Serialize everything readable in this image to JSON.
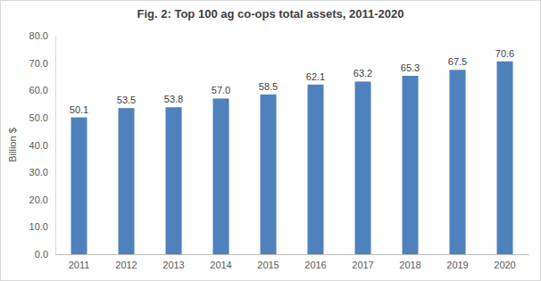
{
  "chart_data": {
    "type": "bar",
    "title": "Fig. 2: Top 100 ag co-ops total assets, 2011-2020",
    "ylabel": "Billion $",
    "categories": [
      "2011",
      "2012",
      "2013",
      "2014",
      "2015",
      "2016",
      "2017",
      "2018",
      "2019",
      "2020"
    ],
    "values": [
      50.1,
      53.5,
      53.8,
      57.0,
      58.5,
      62.1,
      63.2,
      65.3,
      67.5,
      70.6
    ],
    "value_labels": [
      "50.1",
      "53.5",
      "53.8",
      "57.0",
      "58.5",
      "62.1",
      "63.2",
      "65.3",
      "67.5",
      "70.6"
    ],
    "color": "#4f81bd",
    "ylim": [
      0,
      80
    ],
    "yticks": [
      {
        "value": 0,
        "label": "0.0"
      },
      {
        "value": 10,
        "label": "10.0"
      },
      {
        "value": 20,
        "label": "20.0"
      },
      {
        "value": 30,
        "label": "30.0"
      },
      {
        "value": 40,
        "label": "40.0"
      },
      {
        "value": 50,
        "label": "50.0"
      },
      {
        "value": 60,
        "label": "60.0"
      },
      {
        "value": 70,
        "label": "70.0"
      },
      {
        "value": 80,
        "label": "80.0"
      }
    ],
    "grid": false,
    "data_labels": true
  }
}
